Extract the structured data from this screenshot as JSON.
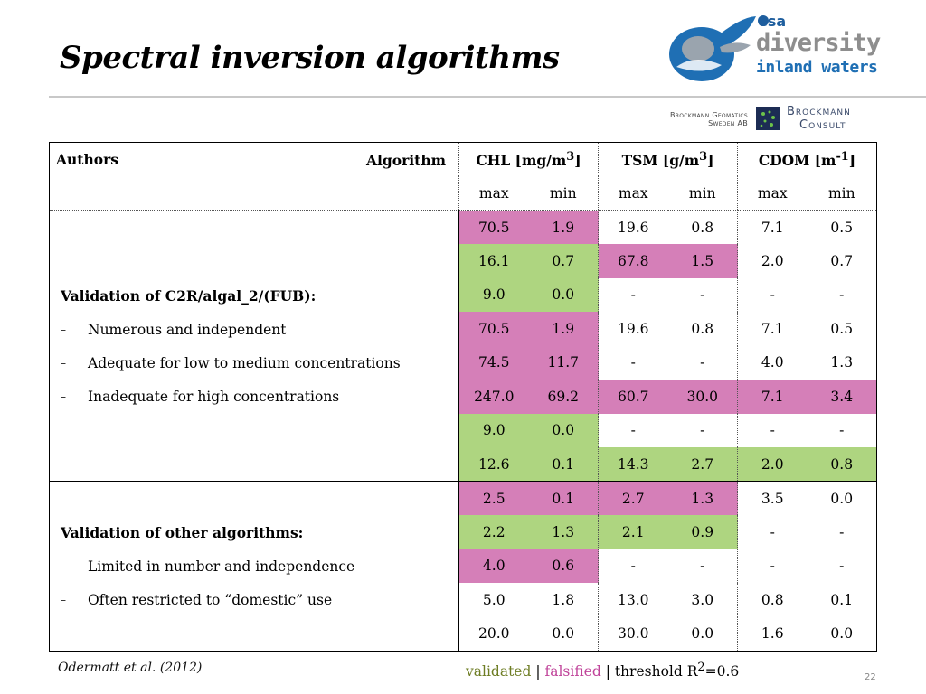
{
  "title": "Spectral inversion algorithms",
  "logos": {
    "esa": "esa",
    "diversity": "diversity",
    "inland_waters": "inland waters",
    "brockmann_geomatics_1": "Brockmann Geomatics",
    "brockmann_geomatics_2": "Sweden AB",
    "brockmann_consult_1": "Brockmann",
    "brockmann_consult_2": "Consult"
  },
  "table": {
    "header": {
      "authors": "Authors",
      "algorithm": "Algorithm",
      "chl": "CHL [mg/m",
      "chl_sup": "3",
      "tsm": "TSM [g/m",
      "tsm_sup": "3",
      "cdom": "CDOM [m",
      "cdom_sup": "-1",
      "close": "]"
    },
    "subheader": [
      "max",
      "min",
      "max",
      "min",
      "max",
      "min"
    ],
    "section1": {
      "title": "Validation of C2R/algal_2/(FUB):",
      "bullets": [
        "Numerous and independent",
        "Adequate for low to medium concentrations",
        "Inadequate for high concentrations"
      ],
      "rows": [
        [
          "70.5",
          "1.9",
          "19.6",
          "0.8",
          "7.1",
          "0.5"
        ],
        [
          "16.1",
          "0.7",
          "67.8",
          "1.5",
          "2.0",
          "0.7"
        ],
        [
          "9.0",
          "0.0",
          "-",
          "-",
          "-",
          "-"
        ],
        [
          "70.5",
          "1.9",
          "19.6",
          "0.8",
          "7.1",
          "0.5"
        ],
        [
          "74.5",
          "11.7",
          "-",
          "-",
          "4.0",
          "1.3"
        ],
        [
          "247.0",
          "69.2",
          "60.7",
          "30.0",
          "7.1",
          "3.4"
        ],
        [
          "9.0",
          "0.0",
          "-",
          "-",
          "-",
          "-"
        ],
        [
          "12.6",
          "0.1",
          "14.3",
          "2.7",
          "2.0",
          "0.8"
        ]
      ]
    },
    "section2": {
      "title": "Validation of other algorithms:",
      "bullets": [
        "Limited in number and independence",
        "Often restricted to “domestic” use"
      ],
      "rows": [
        [
          "2.5",
          "0.1",
          "2.7",
          "1.3",
          "3.5",
          "0.0"
        ],
        [
          "2.2",
          "1.3",
          "2.1",
          "0.9",
          "-",
          "-"
        ],
        [
          "4.0",
          "0.6",
          "-",
          "-",
          "-",
          "-"
        ],
        [
          "5.0",
          "1.8",
          "13.0",
          "3.0",
          "0.8",
          "0.1"
        ],
        [
          "20.0",
          "0.0",
          "30.0",
          "0.0",
          "1.6",
          "0.0"
        ]
      ]
    }
  },
  "colors": {
    "validated": "#aed580",
    "falsified": "#d57fb8"
  },
  "footnote": "Odermatt et al. (2012)",
  "legend": {
    "validated": "validated",
    "sep": " | ",
    "falsified": "falsified",
    "threshold_pre": " | threshold R",
    "threshold_sup": "2",
    "threshold_post": "=0.6"
  },
  "page_number": "22"
}
